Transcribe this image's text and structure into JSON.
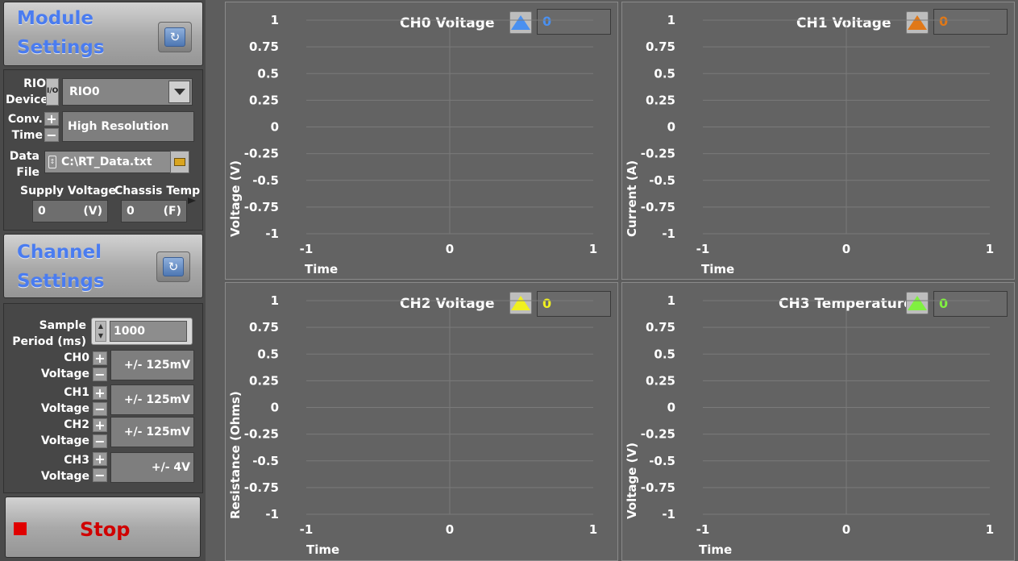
{
  "module_settings": {
    "title_line1": "Module",
    "title_line2": "Settings",
    "rio_device_label_1": "RIO",
    "rio_device_label_2": "Device",
    "rio_device_value": "RIO0",
    "io_glyph": "I/O",
    "conv_time_label_1": "Conv.",
    "conv_time_label_2": "Time",
    "conv_time_value": "High Resolution",
    "data_file_label_1": "Data",
    "data_file_label_2": "File",
    "data_file_value": "C:\\RT_Data.txt",
    "supply_voltage_label": "Supply Voltage",
    "supply_voltage_value": "0",
    "supply_voltage_unit": "(V)",
    "chassis_temp_label": "Chassis Temp",
    "chassis_temp_value": "0",
    "chassis_temp_unit": "(F)"
  },
  "channel_settings": {
    "title_line1": "Channel",
    "title_line2": "Settings",
    "sample_period_label_1": "Sample",
    "sample_period_label_2": "Period (ms)",
    "sample_period_value": "1000",
    "channels": [
      {
        "label_1": "CH0",
        "label_2": "Voltage",
        "value": "+/- 125mV"
      },
      {
        "label_1": "CH1",
        "label_2": "Voltage",
        "value": "+/- 125mV"
      },
      {
        "label_1": "CH2",
        "label_2": "Voltage",
        "value": "+/- 125mV"
      },
      {
        "label_1": "CH3",
        "label_2": "Voltage",
        "value": "+/- 4V"
      }
    ]
  },
  "stop_button": {
    "label": "Stop"
  },
  "graphs": [
    {
      "title": "CH0 Voltage",
      "ylabel": "Voltage (V)",
      "xlabel": "Time",
      "value": "0",
      "color": "#4a90f0"
    },
    {
      "title": "CH1 Voltage",
      "ylabel": "Current (A)",
      "xlabel": "Time",
      "value": "0",
      "color": "#e07818"
    },
    {
      "title": "CH2 Voltage",
      "ylabel": "Resistance (Ohms)",
      "xlabel": "Time",
      "value": "0",
      "color": "#f0f020"
    },
    {
      "title": "CH3 Temperature",
      "ylabel": "Voltage (V)",
      "xlabel": "Time",
      "value": "0",
      "color": "#80f040"
    }
  ],
  "chart_data": {
    "type": "line",
    "series": [],
    "ylim": [
      -1,
      1
    ],
    "xlim": [
      -1,
      1
    ],
    "yticks": [
      "1",
      "0.75",
      "0.5",
      "0.25",
      "0",
      "-0.25",
      "-0.5",
      "-0.75",
      "-1"
    ],
    "xticks": [
      "-1",
      "0",
      "1"
    ],
    "grid": true
  }
}
